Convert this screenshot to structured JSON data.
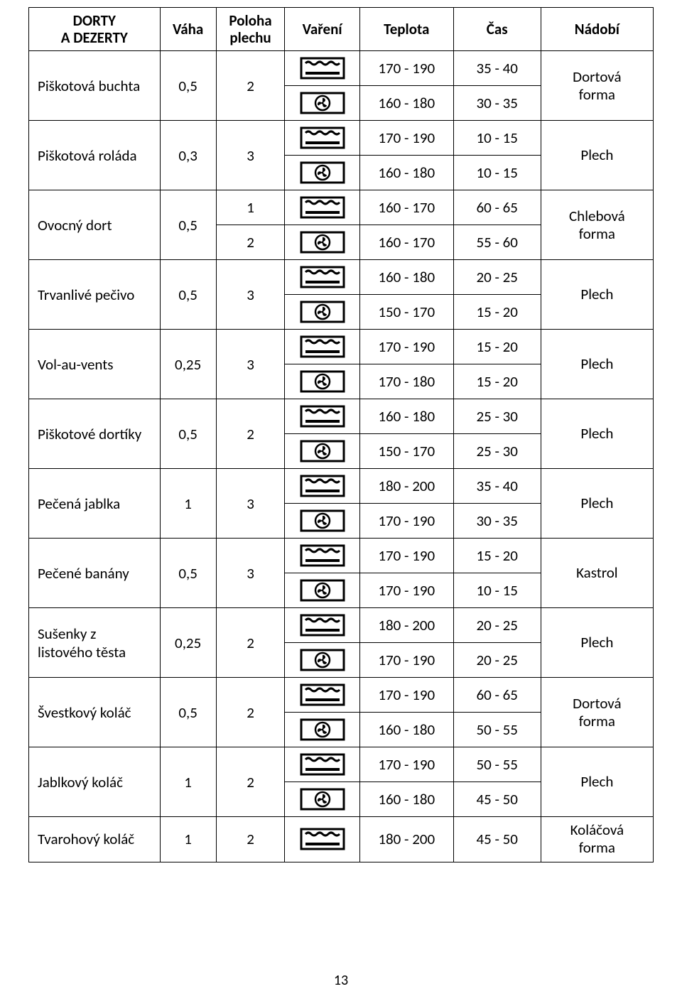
{
  "page_number": "13",
  "headers": {
    "name": "DORTY\nA DEZERTY",
    "weight": "Váha",
    "pos": "Poloha\nplechu",
    "cook": "Vaření",
    "temp": "Teplota",
    "time": "Čas",
    "dish": "Nádobí"
  },
  "icons": {
    "conv": "conventional-oven-icon",
    "fan": "fan-oven-icon"
  },
  "rows": [
    {
      "name": "Piškotová buchta",
      "weight": "0,5",
      "pos": "2",
      "dish": "Dortová forma",
      "modes": [
        {
          "icon": "conv",
          "temp": "170 - 190",
          "time": "35 - 40"
        },
        {
          "icon": "fan",
          "temp": "160 - 180",
          "time": "30 - 35"
        }
      ]
    },
    {
      "name": "Piškotová roláda",
      "weight": "0,3",
      "pos": "3",
      "dish": "Plech",
      "modes": [
        {
          "icon": "conv",
          "temp": "170 - 190",
          "time": "10 - 15"
        },
        {
          "icon": "fan",
          "temp": "160 - 180",
          "time": "10 - 15"
        }
      ]
    },
    {
      "name": "Ovocný dort",
      "weight": "0,5",
      "dish": "Chlebová forma",
      "inline_pos": true,
      "modes": [
        {
          "pos": "1",
          "icon": "conv",
          "temp": "160 - 170",
          "time": "60 - 65"
        },
        {
          "pos": "2",
          "icon": "fan",
          "temp": "160 - 170",
          "time": "55 - 60"
        }
      ]
    },
    {
      "name": "Trvanlivé pečivo",
      "weight": "0,5",
      "pos": "3",
      "dish": "Plech",
      "modes": [
        {
          "icon": "conv",
          "temp": "160 - 180",
          "time": "20 - 25"
        },
        {
          "icon": "fan",
          "temp": "150 - 170",
          "time": "15 - 20"
        }
      ]
    },
    {
      "name": "Vol-au-vents",
      "weight": "0,25",
      "pos": "3",
      "dish": "Plech",
      "modes": [
        {
          "icon": "conv",
          "temp": "170 - 190",
          "time": "15 - 20"
        },
        {
          "icon": "fan",
          "temp": "170 - 180",
          "time": "15 - 20"
        }
      ]
    },
    {
      "name": "Piškotové dortíky",
      "weight": "0,5",
      "pos": "2",
      "dish": "Plech",
      "modes": [
        {
          "icon": "conv",
          "temp": "160 - 180",
          "time": "25 - 30"
        },
        {
          "icon": "fan",
          "temp": "150 - 170",
          "time": "25 - 30"
        }
      ]
    },
    {
      "name": "Pečená jablka",
      "weight": "1",
      "pos": "3",
      "dish": "Plech",
      "modes": [
        {
          "icon": "conv",
          "temp": "180 - 200",
          "time": "35 - 40"
        },
        {
          "icon": "fan",
          "temp": "170 - 190",
          "time": "30 - 35"
        }
      ]
    },
    {
      "name": "Pečené banány",
      "weight": "0,5",
      "pos": "3",
      "dish": "Kastrol",
      "modes": [
        {
          "icon": "conv",
          "temp": "170 - 190",
          "time": "15 - 20"
        },
        {
          "icon": "fan",
          "temp": "170 - 190",
          "time": "10 - 15"
        }
      ]
    },
    {
      "name": "Sušenky z listového těsta",
      "weight": "0,25",
      "pos": "2",
      "dish": "Plech",
      "modes": [
        {
          "icon": "conv",
          "temp": "180 - 200",
          "time": "20 - 25"
        },
        {
          "icon": "fan",
          "temp": "170 - 190",
          "time": "20 - 25"
        }
      ]
    },
    {
      "name": "Švestkový koláč",
      "weight": "0,5",
      "pos": "2",
      "dish": "Dortová forma",
      "modes": [
        {
          "icon": "conv",
          "temp": "170 - 190",
          "time": "60 - 65"
        },
        {
          "icon": "fan",
          "temp": "160 - 180",
          "time": "50 - 55"
        }
      ]
    },
    {
      "name": "Jablkový koláč",
      "weight": "1",
      "pos": "2",
      "dish": "Plech",
      "modes": [
        {
          "icon": "conv",
          "temp": "170 - 190",
          "time": "50 - 55"
        },
        {
          "icon": "fan",
          "temp": "160 - 180",
          "time": "45 - 50"
        }
      ]
    },
    {
      "name": "Tvarohový koláč",
      "weight": "1",
      "pos": "2",
      "dish": "Koláčová forma",
      "modes": [
        {
          "icon": "conv",
          "temp": "180 - 200",
          "time": "45 - 50"
        }
      ]
    }
  ]
}
